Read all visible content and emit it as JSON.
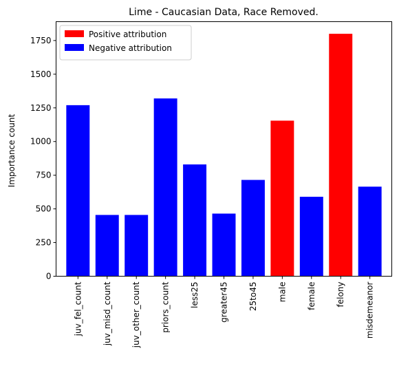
{
  "chart_data": {
    "type": "bar",
    "title": "Lime - Caucasian Data, Race Removed.",
    "xlabel": "",
    "ylabel": "Importance count",
    "ylim": [
      0,
      1890
    ],
    "yticks": [
      0,
      250,
      500,
      750,
      1000,
      1250,
      1500,
      1750
    ],
    "grid": false,
    "legend_position": "upper left",
    "categories": [
      "juv_fel_count",
      "juv_misd_count",
      "juv_other_count",
      "priors_count",
      "less25",
      "greater45",
      "25to45",
      "male",
      "female",
      "felony",
      "misdemeanor"
    ],
    "values": [
      1270,
      455,
      455,
      1320,
      830,
      465,
      715,
      1155,
      590,
      1800,
      665
    ],
    "attribution": [
      "negative",
      "negative",
      "negative",
      "negative",
      "negative",
      "negative",
      "negative",
      "positive",
      "negative",
      "positive",
      "negative"
    ],
    "legend": [
      {
        "label": "Positive attribution",
        "key": "positive",
        "color": "#ff0000"
      },
      {
        "label": "Negative attribution",
        "key": "negative",
        "color": "#0000ff"
      }
    ]
  }
}
